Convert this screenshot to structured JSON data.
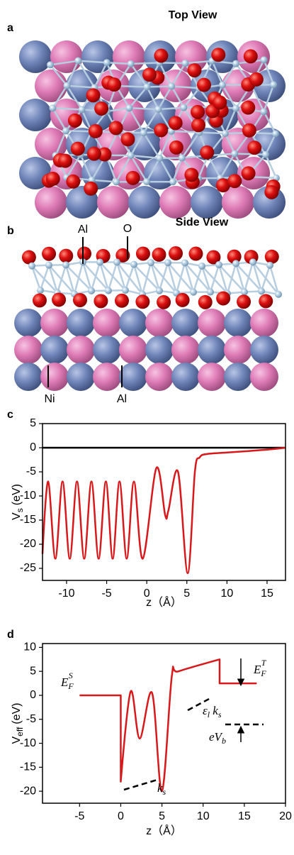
{
  "figure": {
    "panels": [
      {
        "label": "a",
        "title": "Top View"
      },
      {
        "label": "b",
        "title": "Side View",
        "atoms_top": [
          "Al",
          "O"
        ],
        "atoms_bottom": [
          "Ni",
          "Al"
        ]
      }
    ]
  },
  "chart_data": [
    {
      "type": "line",
      "panel": "c",
      "y_label": {
        "base": "V",
        "sub": "s",
        "unit": "(eV)"
      },
      "x_label": "z（Å）",
      "xlim": [
        -13,
        17.3
      ],
      "ylim": [
        -27.5,
        5
      ],
      "xticks": [
        -10,
        -5,
        0,
        5,
        10,
        15
      ],
      "yticks": [
        5,
        0,
        -5,
        -10,
        -15,
        -20,
        -25
      ],
      "zero_line": true,
      "x": [
        -13,
        -12.3,
        -11.4,
        -10.5,
        -9.6,
        -8.7,
        -7.8,
        -6.9,
        -6.0,
        -5.1,
        -4.25,
        -3.4,
        -2.5,
        -1.6,
        -0.5,
        1.2,
        2.3,
        2.7,
        3.9,
        5.1,
        6.0,
        6.6,
        7.5,
        10,
        15,
        17.3
      ],
      "series": [
        {
          "color": "#d7191c",
          "values": [
            -22,
            -7,
            -23,
            -7,
            -23,
            -7,
            -23,
            -7,
            -23,
            -7,
            -23,
            -7,
            -23,
            -7,
            -23,
            -4.2,
            -14,
            -13,
            -5,
            -26,
            -5,
            -2,
            -1.3,
            -1,
            -0.4,
            0
          ]
        }
      ]
    },
    {
      "type": "line",
      "panel": "d",
      "y_label": {
        "base": "V",
        "sub": "eff",
        "unit": "(eV)"
      },
      "x_label": "z（Å）",
      "xlim": [
        -9.5,
        20
      ],
      "ylim": [
        -22.5,
        10.8
      ],
      "xticks": [
        -5,
        0,
        5,
        10,
        15,
        20
      ],
      "yticks": [
        10,
        5,
        0,
        -5,
        -10,
        -15,
        -20
      ],
      "x": [
        -5,
        0,
        0,
        1.2,
        2.3,
        3.8,
        5,
        6.2,
        7,
        12,
        12,
        16.5
      ],
      "series": [
        {
          "color": "#d7191c",
          "values": [
            0,
            0,
            -18,
            0.8,
            -9,
            0.5,
            -20,
            4,
            5,
            7.5,
            2.5,
            2.5
          ]
        }
      ],
      "annotations": [
        {
          "base": "E",
          "sub": "F",
          "sup": "S"
        },
        {
          "base": "E",
          "sub": "F",
          "sup": "T"
        },
        {
          "base": "ε",
          "sub": "l",
          "base2": " k",
          "sub2": "s"
        },
        {
          "base": "eV",
          "sub": "b"
        },
        {
          "base": "k",
          "sub": "s"
        }
      ]
    }
  ]
}
